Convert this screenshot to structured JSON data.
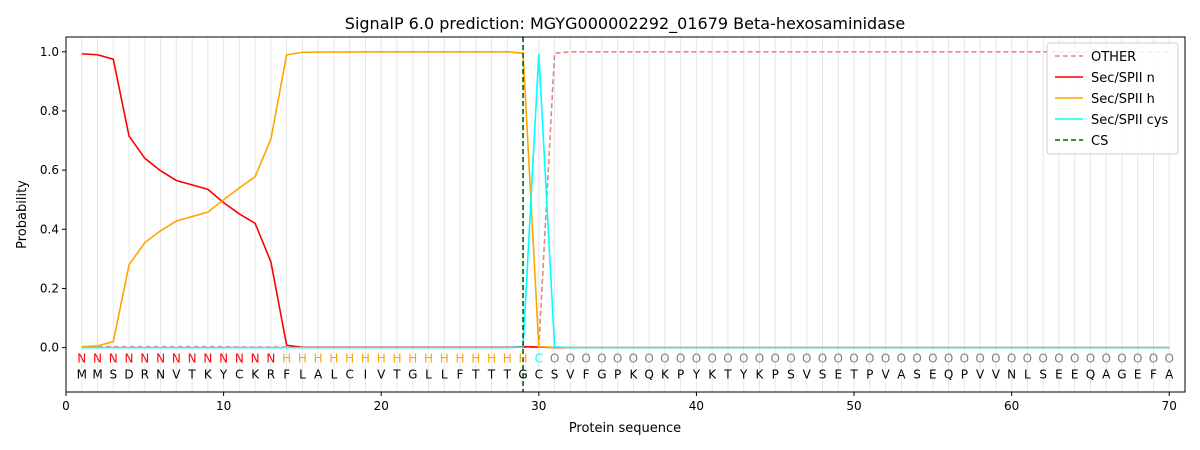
{
  "chart_data": {
    "type": "line",
    "title": "SignalP 6.0 prediction: MGYG000002292_01679 Beta-hexosaminidase",
    "xlabel": "Protein sequence",
    "ylabel": "Probability",
    "xlim": [
      0,
      71
    ],
    "ylim": [
      -0.15,
      1.05
    ],
    "xticks": [
      "0",
      "10",
      "20",
      "30",
      "40",
      "50",
      "60",
      "70"
    ],
    "yticks": [
      "0.0",
      "0.2",
      "0.4",
      "0.6",
      "0.8",
      "1.0"
    ],
    "grid": "vertical lines at each residue",
    "legend_position": "top-right",
    "sequence": [
      "M",
      "M",
      "S",
      "D",
      "R",
      "N",
      "V",
      "T",
      "K",
      "Y",
      "C",
      "K",
      "R",
      "F",
      "L",
      "A",
      "L",
      "C",
      "I",
      "V",
      "T",
      "G",
      "L",
      "L",
      "F",
      "T",
      "T",
      "T",
      "G",
      "C",
      "S",
      "V",
      "F",
      "G",
      "P",
      "K",
      "Q",
      "K",
      "P",
      "Y",
      "K",
      "T",
      "Y",
      "K",
      "P",
      "S",
      "V",
      "S",
      "E",
      "T",
      "P",
      "V",
      "A",
      "S",
      "E",
      "Q",
      "P",
      "V",
      "V",
      "N",
      "L",
      "S",
      "E",
      "E",
      "Q",
      "A",
      "G",
      "E",
      "F",
      "A"
    ],
    "labels": [
      "N",
      "N",
      "N",
      "N",
      "N",
      "N",
      "N",
      "N",
      "N",
      "N",
      "N",
      "N",
      "N",
      "H",
      "H",
      "H",
      "H",
      "H",
      "H",
      "H",
      "H",
      "H",
      "H",
      "H",
      "H",
      "H",
      "H",
      "H",
      "H",
      "C",
      "O",
      "O",
      "O",
      "O",
      "O",
      "O",
      "O",
      "O",
      "O",
      "O",
      "O",
      "O",
      "O",
      "O",
      "O",
      "O",
      "O",
      "O",
      "O",
      "O",
      "O",
      "O",
      "O",
      "O",
      "O",
      "O",
      "O",
      "O",
      "O",
      "O",
      "O",
      "O",
      "O",
      "O",
      "O",
      "O",
      "O",
      "O",
      "O",
      "O"
    ],
    "label_colors": {
      "N": "#ff0000",
      "H": "#ffa500",
      "C": "#00ffff",
      "O": "#808080"
    },
    "x": [
      1,
      2,
      3,
      4,
      5,
      6,
      7,
      8,
      9,
      10,
      11,
      12,
      13,
      14,
      15,
      16,
      17,
      18,
      19,
      20,
      21,
      22,
      23,
      24,
      25,
      26,
      27,
      28,
      29,
      30,
      31,
      32,
      33,
      34,
      35,
      36,
      37,
      38,
      39,
      40,
      41,
      42,
      43,
      44,
      45,
      46,
      47,
      48,
      49,
      50,
      51,
      52,
      53,
      54,
      55,
      56,
      57,
      58,
      59,
      60,
      61,
      62,
      63,
      64,
      65,
      66,
      67,
      68,
      69,
      70
    ],
    "series": [
      {
        "name": "OTHER",
        "color": "#f08080",
        "dash": "dashed",
        "values": [
          0.003,
          0.003,
          0.003,
          0.003,
          0.003,
          0.003,
          0.003,
          0.003,
          0.003,
          0.003,
          0.002,
          0.002,
          0.002,
          0.002,
          0.001,
          0.001,
          0.001,
          0.001,
          0.001,
          0.001,
          0.001,
          0.001,
          0.001,
          0.001,
          0.001,
          0.001,
          0.001,
          0.001,
          0.001,
          0.003,
          0.995,
          1.0,
          1.0,
          1.0,
          1.0,
          1.0,
          1.0,
          1.0,
          1.0,
          1.0,
          1.0,
          1.0,
          1.0,
          1.0,
          1.0,
          1.0,
          1.0,
          1.0,
          1.0,
          1.0,
          1.0,
          1.0,
          1.0,
          1.0,
          1.0,
          1.0,
          1.0,
          1.0,
          1.0,
          1.0,
          1.0,
          1.0,
          1.0,
          1.0,
          1.0,
          1.0,
          1.0,
          1.0,
          1.0,
          1.0
        ]
      },
      {
        "name": "Sec/SPII n",
        "color": "#ff0000",
        "dash": "solid",
        "values": [
          0.993,
          0.99,
          0.975,
          0.715,
          0.64,
          0.598,
          0.565,
          0.55,
          0.535,
          0.49,
          0.452,
          0.42,
          0.29,
          0.008,
          0.001,
          0.001,
          0.001,
          0.001,
          0.001,
          0.001,
          0.001,
          0.001,
          0.001,
          0.001,
          0.001,
          0.001,
          0.001,
          0.001,
          0.003,
          0.002,
          0.0,
          0.0,
          0.0,
          0.0,
          0.0,
          0.0,
          0.0,
          0.0,
          0.0,
          0.0,
          0.0,
          0.0,
          0.0,
          0.0,
          0.0,
          0.0,
          0.0,
          0.0,
          0.0,
          0.0,
          0.0,
          0.0,
          0.0,
          0.0,
          0.0,
          0.0,
          0.0,
          0.0,
          0.0,
          0.0,
          0.0,
          0.0,
          0.0,
          0.0,
          0.0,
          0.0,
          0.0,
          0.0,
          0.0,
          0.0
        ]
      },
      {
        "name": "Sec/SPII h",
        "color": "#ffa500",
        "dash": "solid",
        "values": [
          0.003,
          0.006,
          0.02,
          0.28,
          0.355,
          0.395,
          0.428,
          0.443,
          0.458,
          0.5,
          0.54,
          0.578,
          0.705,
          0.99,
          0.998,
          0.999,
          0.999,
          0.999,
          1.0,
          1.0,
          1.0,
          1.0,
          1.0,
          1.0,
          1.0,
          1.0,
          1.0,
          1.0,
          0.995,
          0.003,
          0.001,
          0.0,
          0.0,
          0.0,
          0.0,
          0.0,
          0.0,
          0.0,
          0.0,
          0.0,
          0.0,
          0.0,
          0.0,
          0.0,
          0.0,
          0.0,
          0.0,
          0.0,
          0.0,
          0.0,
          0.0,
          0.0,
          0.0,
          0.0,
          0.0,
          0.0,
          0.0,
          0.0,
          0.0,
          0.0,
          0.0,
          0.0,
          0.0,
          0.0,
          0.0,
          0.0,
          0.0,
          0.0,
          0.0,
          0.0
        ]
      },
      {
        "name": "Sec/SPII cys",
        "color": "#00ffff",
        "dash": "solid",
        "values": [
          0.0,
          0.0,
          0.0,
          0.0,
          0.0,
          0.0,
          0.0,
          0.0,
          0.0,
          0.0,
          0.0,
          0.0,
          0.0,
          0.0,
          0.0,
          0.0,
          0.0,
          0.0,
          0.0,
          0.0,
          0.0,
          0.0,
          0.0,
          0.0,
          0.0,
          0.0,
          0.0,
          0.0,
          0.002,
          0.993,
          0.003,
          0.0,
          0.0,
          0.0,
          0.0,
          0.0,
          0.0,
          0.0,
          0.0,
          0.0,
          0.0,
          0.0,
          0.0,
          0.0,
          0.0,
          0.0,
          0.0,
          0.0,
          0.0,
          0.0,
          0.0,
          0.0,
          0.0,
          0.0,
          0.0,
          0.0,
          0.0,
          0.0,
          0.0,
          0.0,
          0.0,
          0.0,
          0.0,
          0.0,
          0.0,
          0.0,
          0.0,
          0.0,
          0.0,
          0.0
        ]
      }
    ],
    "cs": {
      "name": "CS",
      "x": 29,
      "color": "#006400",
      "dash": "dashed"
    },
    "legend": [
      "OTHER",
      "Sec/SPII n",
      "Sec/SPII h",
      "Sec/SPII cys",
      "CS"
    ]
  }
}
